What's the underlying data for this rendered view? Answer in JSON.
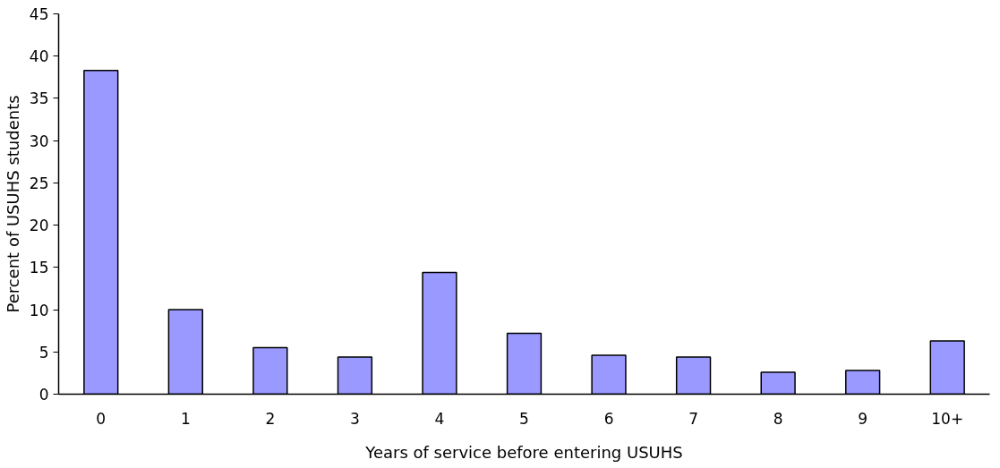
{
  "chart_data": {
    "type": "bar",
    "xlabel": "Years of service before entering USUHS",
    "ylabel": "Percent of USUHS students",
    "categories": [
      "0",
      "1",
      "2",
      "3",
      "4",
      "5",
      "6",
      "7",
      "8",
      "9",
      "10+"
    ],
    "values": [
      38.3,
      10.0,
      5.5,
      4.4,
      14.4,
      7.2,
      4.6,
      4.4,
      2.6,
      2.8,
      6.3
    ],
    "color": "#9999ff",
    "ylim": [
      0,
      45
    ],
    "yticks": [
      0,
      5,
      10,
      15,
      20,
      25,
      30,
      35,
      40,
      45
    ],
    "grid": false
  }
}
